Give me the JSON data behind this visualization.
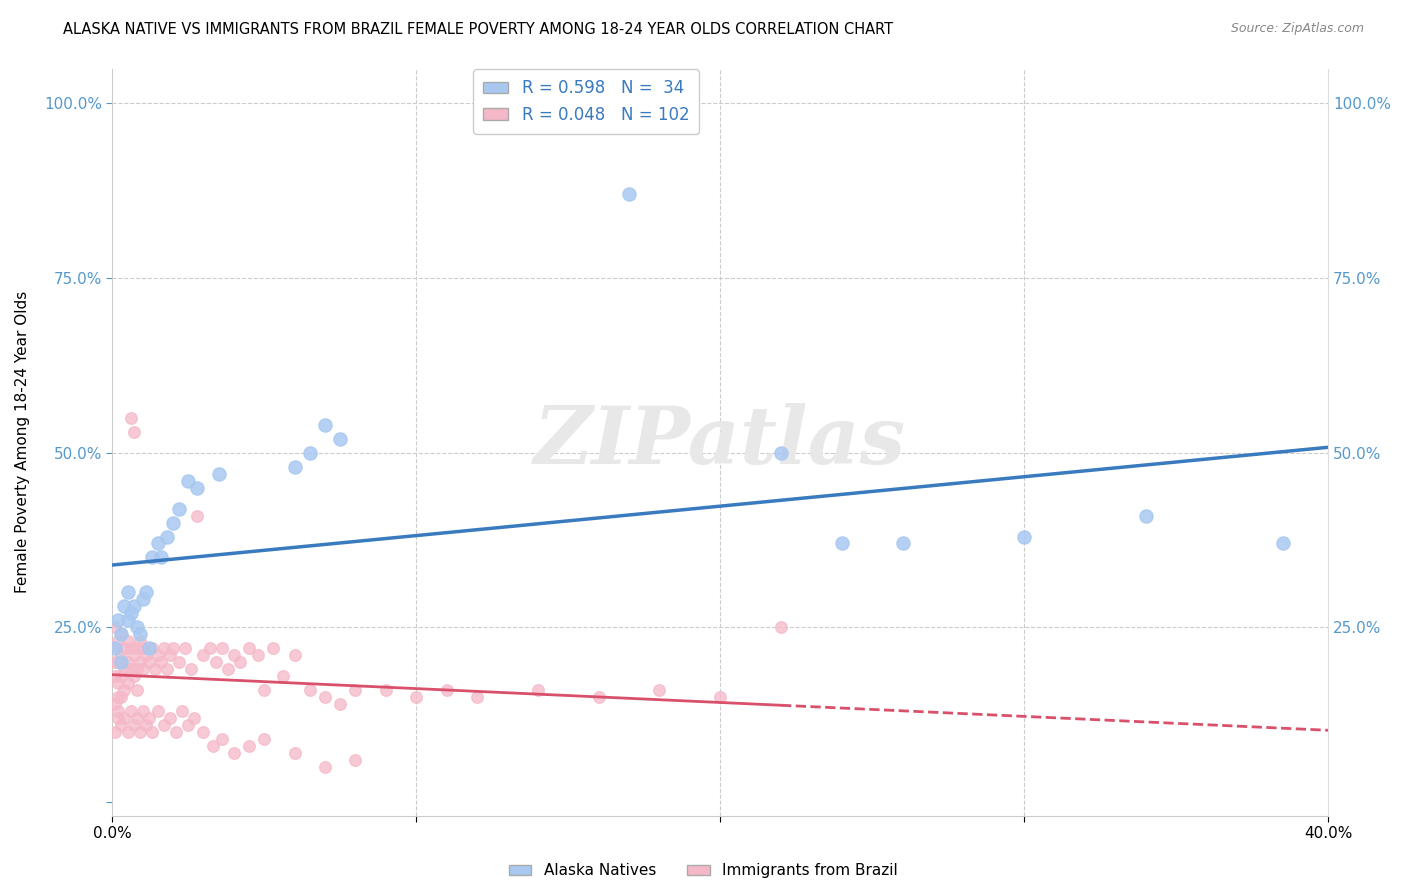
{
  "title": "ALASKA NATIVE VS IMMIGRANTS FROM BRAZIL FEMALE POVERTY AMONG 18-24 YEAR OLDS CORRELATION CHART",
  "source": "Source: ZipAtlas.com",
  "ylabel": "Female Poverty Among 18-24 Year Olds",
  "watermark": "ZIPatlas",
  "legend_label1": "Alaska Natives",
  "legend_label2": "Immigrants from Brazil",
  "R1": 0.598,
  "N1": 34,
  "R2": 0.048,
  "N2": 102,
  "color_blue": "#a8c8f0",
  "color_pink": "#f5b8c8",
  "color_line_blue": "#3a7abf",
  "color_line_pink": "#d9506a",
  "xlim": [
    0.0,
    0.4
  ],
  "ylim": [
    -0.02,
    1.05
  ],
  "alaska_x": [
    0.001,
    0.002,
    0.003,
    0.003,
    0.004,
    0.005,
    0.005,
    0.006,
    0.007,
    0.008,
    0.009,
    0.01,
    0.011,
    0.012,
    0.013,
    0.015,
    0.016,
    0.018,
    0.02,
    0.022,
    0.025,
    0.028,
    0.035,
    0.06,
    0.065,
    0.07,
    0.075,
    0.17,
    0.22,
    0.24,
    0.26,
    0.3,
    0.34,
    0.385
  ],
  "alaska_y": [
    0.22,
    0.26,
    0.24,
    0.2,
    0.28,
    0.26,
    0.3,
    0.27,
    0.28,
    0.25,
    0.24,
    0.29,
    0.3,
    0.22,
    0.35,
    0.37,
    0.35,
    0.38,
    0.4,
    0.42,
    0.46,
    0.45,
    0.47,
    0.48,
    0.5,
    0.54,
    0.52,
    0.87,
    0.5,
    0.37,
    0.37,
    0.38,
    0.41,
    0.37
  ],
  "brazil_x": [
    0.001,
    0.001,
    0.001,
    0.001,
    0.001,
    0.002,
    0.002,
    0.002,
    0.002,
    0.002,
    0.003,
    0.003,
    0.003,
    0.003,
    0.004,
    0.004,
    0.004,
    0.005,
    0.005,
    0.005,
    0.006,
    0.006,
    0.006,
    0.007,
    0.007,
    0.007,
    0.008,
    0.008,
    0.008,
    0.009,
    0.009,
    0.01,
    0.01,
    0.011,
    0.012,
    0.013,
    0.014,
    0.015,
    0.016,
    0.017,
    0.018,
    0.019,
    0.02,
    0.022,
    0.024,
    0.026,
    0.028,
    0.03,
    0.032,
    0.034,
    0.036,
    0.038,
    0.04,
    0.042,
    0.045,
    0.048,
    0.05,
    0.053,
    0.056,
    0.06,
    0.065,
    0.07,
    0.075,
    0.08,
    0.09,
    0.1,
    0.11,
    0.12,
    0.14,
    0.16,
    0.18,
    0.2,
    0.22,
    0.001,
    0.002,
    0.003,
    0.004,
    0.005,
    0.006,
    0.007,
    0.008,
    0.009,
    0.01,
    0.011,
    0.012,
    0.013,
    0.015,
    0.017,
    0.019,
    0.021,
    0.023,
    0.025,
    0.027,
    0.03,
    0.033,
    0.036,
    0.04,
    0.045,
    0.05,
    0.06,
    0.07,
    0.08
  ],
  "brazil_y": [
    0.22,
    0.25,
    0.2,
    0.18,
    0.14,
    0.23,
    0.2,
    0.17,
    0.15,
    0.12,
    0.24,
    0.21,
    0.18,
    0.15,
    0.22,
    0.19,
    0.16,
    0.23,
    0.2,
    0.17,
    0.55,
    0.22,
    0.19,
    0.53,
    0.21,
    0.18,
    0.22,
    0.19,
    0.16,
    0.23,
    0.2,
    0.22,
    0.19,
    0.21,
    0.2,
    0.22,
    0.19,
    0.21,
    0.2,
    0.22,
    0.19,
    0.21,
    0.22,
    0.2,
    0.22,
    0.19,
    0.41,
    0.21,
    0.22,
    0.2,
    0.22,
    0.19,
    0.21,
    0.2,
    0.22,
    0.21,
    0.16,
    0.22,
    0.18,
    0.21,
    0.16,
    0.15,
    0.14,
    0.16,
    0.16,
    0.15,
    0.16,
    0.15,
    0.16,
    0.15,
    0.16,
    0.15,
    0.25,
    0.1,
    0.13,
    0.11,
    0.12,
    0.1,
    0.13,
    0.11,
    0.12,
    0.1,
    0.13,
    0.11,
    0.12,
    0.1,
    0.13,
    0.11,
    0.12,
    0.1,
    0.13,
    0.11,
    0.12,
    0.1,
    0.08,
    0.09,
    0.07,
    0.08,
    0.09,
    0.07,
    0.05,
    0.06
  ]
}
